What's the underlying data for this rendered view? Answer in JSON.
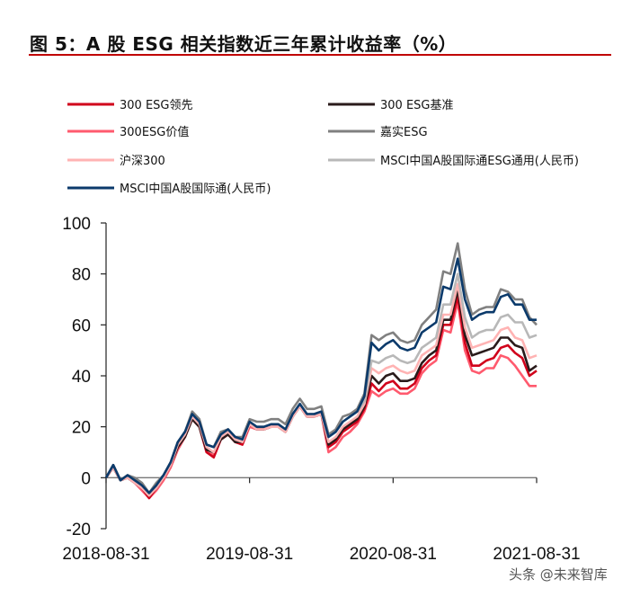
{
  "title": "图 5：A 股 ESG 相关指数近三年累计收益率（%）",
  "watermark": "头条 @未来智库",
  "chart_data": {
    "type": "line",
    "title": "图 5：A 股 ESG 相关指数近三年累计收益率（%）",
    "xlabel": "",
    "ylabel": "",
    "x_range": [
      "2018-08-31",
      "2021-08-31"
    ],
    "x_sampling": "evenly spaced",
    "x_ticks": [
      "2018-08-31",
      "2019-08-31",
      "2020-08-31",
      "2021-08-31"
    ],
    "ylim": [
      -20,
      100
    ],
    "y_ticks": [
      100,
      80,
      60,
      40,
      20,
      0,
      -20
    ],
    "grid": false,
    "legend_position": "top",
    "series": [
      {
        "name": "300ESG价值",
        "color": "#ff5a6e",
        "values": [
          0,
          4,
          -1,
          0,
          -2,
          -5,
          -8,
          -5,
          -1,
          4,
          11,
          16,
          23,
          20,
          10,
          9,
          15,
          17,
          14,
          13,
          20,
          19,
          19,
          20,
          20,
          18,
          24,
          28,
          24,
          24,
          25,
          10,
          12,
          16,
          18,
          21,
          26,
          34,
          32,
          34,
          35,
          33,
          33,
          35,
          41,
          44,
          46,
          58,
          57,
          69,
          50,
          42,
          41,
          43,
          43,
          48,
          47,
          44,
          40,
          36,
          36
        ]
      },
      {
        "name": "300 ESG领先",
        "color": "#d0021b",
        "values": [
          0,
          4,
          -1,
          0,
          -2,
          -4,
          -8,
          -4,
          0,
          5,
          12,
          16,
          23,
          20,
          10,
          8,
          15,
          17,
          14,
          13,
          21,
          19,
          19,
          20,
          20,
          18,
          24,
          28,
          24,
          24,
          25,
          12,
          14,
          18,
          20,
          22,
          27,
          37,
          34,
          37,
          38,
          35,
          35,
          37,
          43,
          46,
          48,
          60,
          60,
          71,
          53,
          44,
          44,
          46,
          47,
          51,
          52,
          49,
          47,
          40,
          42
        ]
      },
      {
        "name": "300 ESG基准",
        "color": "#2a1b1b",
        "values": [
          0,
          4,
          -1,
          0,
          -2,
          -4,
          -7,
          -4,
          0,
          5,
          12,
          16,
          23,
          20,
          11,
          10,
          15,
          17,
          14,
          14,
          21,
          19,
          19,
          20,
          20,
          18,
          24,
          28,
          24,
          24,
          25,
          13,
          15,
          19,
          21,
          23,
          28,
          40,
          37,
          40,
          41,
          38,
          38,
          39,
          45,
          48,
          50,
          62,
          62,
          74,
          56,
          48,
          49,
          50,
          51,
          55,
          55,
          52,
          51,
          42,
          44
        ]
      },
      {
        "name": "沪深300",
        "color": "#ffb3b3",
        "values": [
          0,
          4,
          -1,
          0,
          -2,
          -4,
          -7,
          -4,
          0,
          5,
          13,
          17,
          24,
          21,
          12,
          10,
          16,
          18,
          15,
          14,
          21,
          19,
          19,
          20,
          20,
          18,
          24,
          28,
          24,
          24,
          25,
          14,
          16,
          20,
          22,
          24,
          29,
          43,
          41,
          43,
          44,
          42,
          41,
          42,
          48,
          50,
          52,
          64,
          64,
          76,
          59,
          51,
          52,
          53,
          54,
          58,
          59,
          55,
          54,
          47,
          48
        ]
      },
      {
        "name": "MSCI中国A股国际通ESG通用(人民币)",
        "color": "#b8b8b8",
        "values": [
          0,
          5,
          -1,
          1,
          -1,
          -3,
          -6,
          -3,
          1,
          6,
          14,
          18,
          25,
          22,
          13,
          12,
          17,
          19,
          16,
          15,
          22,
          20,
          20,
          21,
          21,
          19,
          25,
          29,
          25,
          25,
          26,
          16,
          18,
          22,
          24,
          26,
          30,
          46,
          45,
          47,
          48,
          46,
          45,
          46,
          51,
          53,
          55,
          68,
          68,
          80,
          63,
          55,
          57,
          58,
          58,
          63,
          64,
          61,
          61,
          55,
          56
        ]
      },
      {
        "name": "嘉实ESG",
        "color": "#808080",
        "values": [
          0,
          5,
          -1,
          1,
          0,
          -2,
          -6,
          -2,
          1,
          6,
          14,
          18,
          26,
          23,
          13,
          12,
          18,
          19,
          16,
          16,
          23,
          22,
          22,
          23,
          23,
          21,
          27,
          31,
          27,
          27,
          28,
          17,
          19,
          24,
          25,
          27,
          33,
          56,
          54,
          56,
          57,
          54,
          53,
          54,
          60,
          63,
          66,
          81,
          80,
          92,
          74,
          64,
          66,
          67,
          67,
          74,
          73,
          70,
          70,
          63,
          60
        ]
      },
      {
        "name": "MSCI中国A股国际通(人民币)",
        "color": "#0b3a6b",
        "values": [
          0,
          5,
          -1,
          1,
          -1,
          -3,
          -6,
          -3,
          1,
          6,
          14,
          18,
          25,
          22,
          13,
          12,
          17,
          19,
          16,
          15,
          22,
          20,
          20,
          21,
          21,
          19,
          25,
          29,
          25,
          25,
          26,
          16,
          18,
          22,
          24,
          26,
          32,
          53,
          50,
          52.5,
          54,
          51,
          50,
          51,
          57,
          59,
          61,
          75,
          74,
          86,
          70,
          62,
          64,
          65,
          65,
          71,
          72,
          68,
          68,
          62,
          62
        ]
      }
    ],
    "legend_order": [
      "300 ESG领先",
      "300 ESG基准",
      "300ESG价值",
      "嘉实ESG",
      "沪深300",
      "MSCI中国A股国际通ESG通用(人民币)",
      "MSCI中国A股国际通(人民币)"
    ]
  }
}
